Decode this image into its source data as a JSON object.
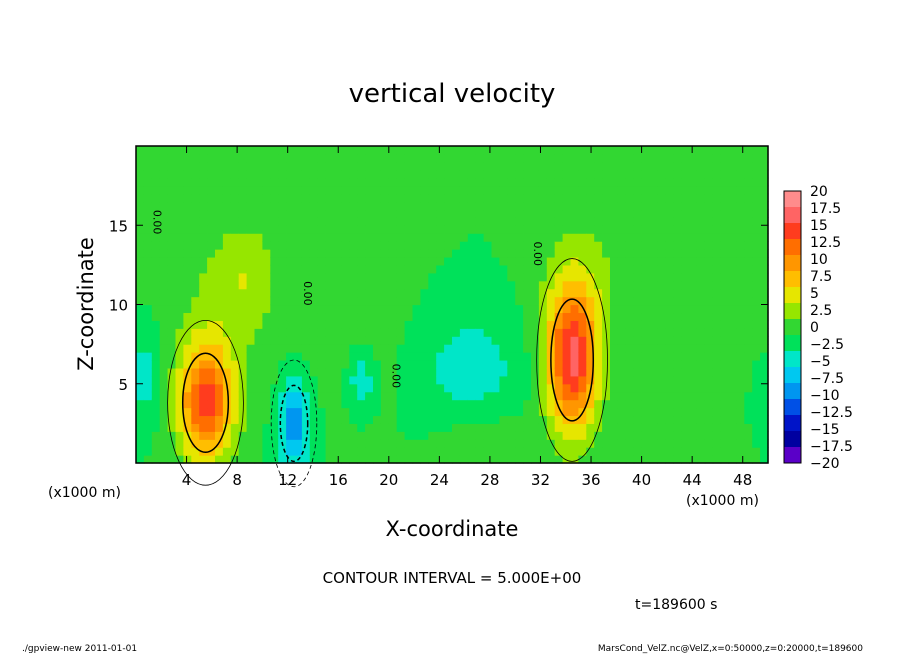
{
  "chart_data": {
    "type": "heatmap",
    "title": "vertical velocity",
    "xlabel": "X-coordinate",
    "ylabel": "Z-coordinate",
    "x_unit_label": "(×1000 m)",
    "x_unit_label_left": "(x1000 m)",
    "x_unit_label_right": "(x1000 m)",
    "xlim": [
      0,
      50
    ],
    "ylim": [
      0,
      20
    ],
    "x_ticks": [
      4,
      8,
      12,
      16,
      20,
      24,
      28,
      32,
      36,
      40,
      44,
      48
    ],
    "y_ticks": [
      5,
      10,
      15
    ],
    "contour_interval_text": "CONTOUR INTERVAL = 5.000E+00",
    "time_text": "t=189600 s",
    "contour_labels": [
      {
        "text": "0.00",
        "x": 1.4,
        "y": 15.2,
        "rot": 90
      },
      {
        "text": "0.00",
        "x": 13.3,
        "y": 10.7,
        "rot": 90
      },
      {
        "text": "0.00",
        "x": 20.3,
        "y": 5.5,
        "rot": 90
      },
      {
        "text": "0.00",
        "x": 31.5,
        "y": 13.2,
        "rot": 90
      }
    ],
    "colorbar": {
      "min": -20,
      "max": 20,
      "step": 2.5,
      "labels": [
        "20",
        "17.5",
        "15",
        "12.5",
        "10",
        "7.5",
        "5",
        "2.5",
        "0",
        "−2.5",
        "−5",
        "−7.5",
        "−10",
        "−12.5",
        "−15",
        "−17.5",
        "−20"
      ],
      "colors": [
        "#ff8c8c",
        "#ff6464",
        "#ff3c1e",
        "#ff6e00",
        "#ff9600",
        "#ffbe00",
        "#e6e600",
        "#96e600",
        "#32d732",
        "#00e15a",
        "#00e6c8",
        "#00c8f0",
        "#0096f0",
        "#0050e6",
        "#0014c8",
        "#0000a0",
        "#5a00c8"
      ]
    },
    "features": [
      {
        "x": 5.5,
        "z": 3.8,
        "amp": 15,
        "sx": 1.5,
        "sz": 2.6
      },
      {
        "x": 6.8,
        "z": 9.5,
        "amp": 3,
        "sx": 2.5,
        "sz": 4.5
      },
      {
        "x": 9.0,
        "z": 12.0,
        "amp": 3,
        "sx": 1.5,
        "sz": 2.0
      },
      {
        "x": 34.5,
        "z": 6.5,
        "amp": 17,
        "sx": 1.4,
        "sz": 3.2
      },
      {
        "x": 35.5,
        "z": 11.0,
        "amp": 3,
        "sx": 2.5,
        "sz": 4.0
      },
      {
        "x": 12.5,
        "z": 2.5,
        "amp": -9,
        "sx": 0.9,
        "sz": 2.0
      },
      {
        "x": 17.8,
        "z": 5.3,
        "amp": -5,
        "sx": 0.7,
        "sz": 1.3
      },
      {
        "x": 26.5,
        "z": 6.0,
        "amp": -4,
        "sx": 2.8,
        "sz": 2.5
      },
      {
        "x": 0.8,
        "z": 5.5,
        "amp": -4,
        "sx": 0.8,
        "sz": 1.8
      },
      {
        "x": 49.5,
        "z": 4.0,
        "amp": -3,
        "sx": 0.8,
        "sz": 1.5
      },
      {
        "x": 16.0,
        "z": 11.0,
        "amp": 1.5,
        "sx": 3.5,
        "sz": 5.0
      },
      {
        "x": 27.5,
        "z": 1.5,
        "amp": 2,
        "sx": 2.5,
        "sz": 1.5
      },
      {
        "x": 40.5,
        "z": 2.0,
        "amp": 1.8,
        "sx": 1.8,
        "sz": 1.5
      },
      {
        "x": 46.5,
        "z": 5.0,
        "amp": 2,
        "sx": 1.8,
        "sz": 3.0
      }
    ]
  },
  "footer": {
    "left": "./gpview-new   2011-01-01",
    "right": "MarsCond_VelZ.nc@VelZ,x=0:50000,z=0:20000,t=189600"
  }
}
